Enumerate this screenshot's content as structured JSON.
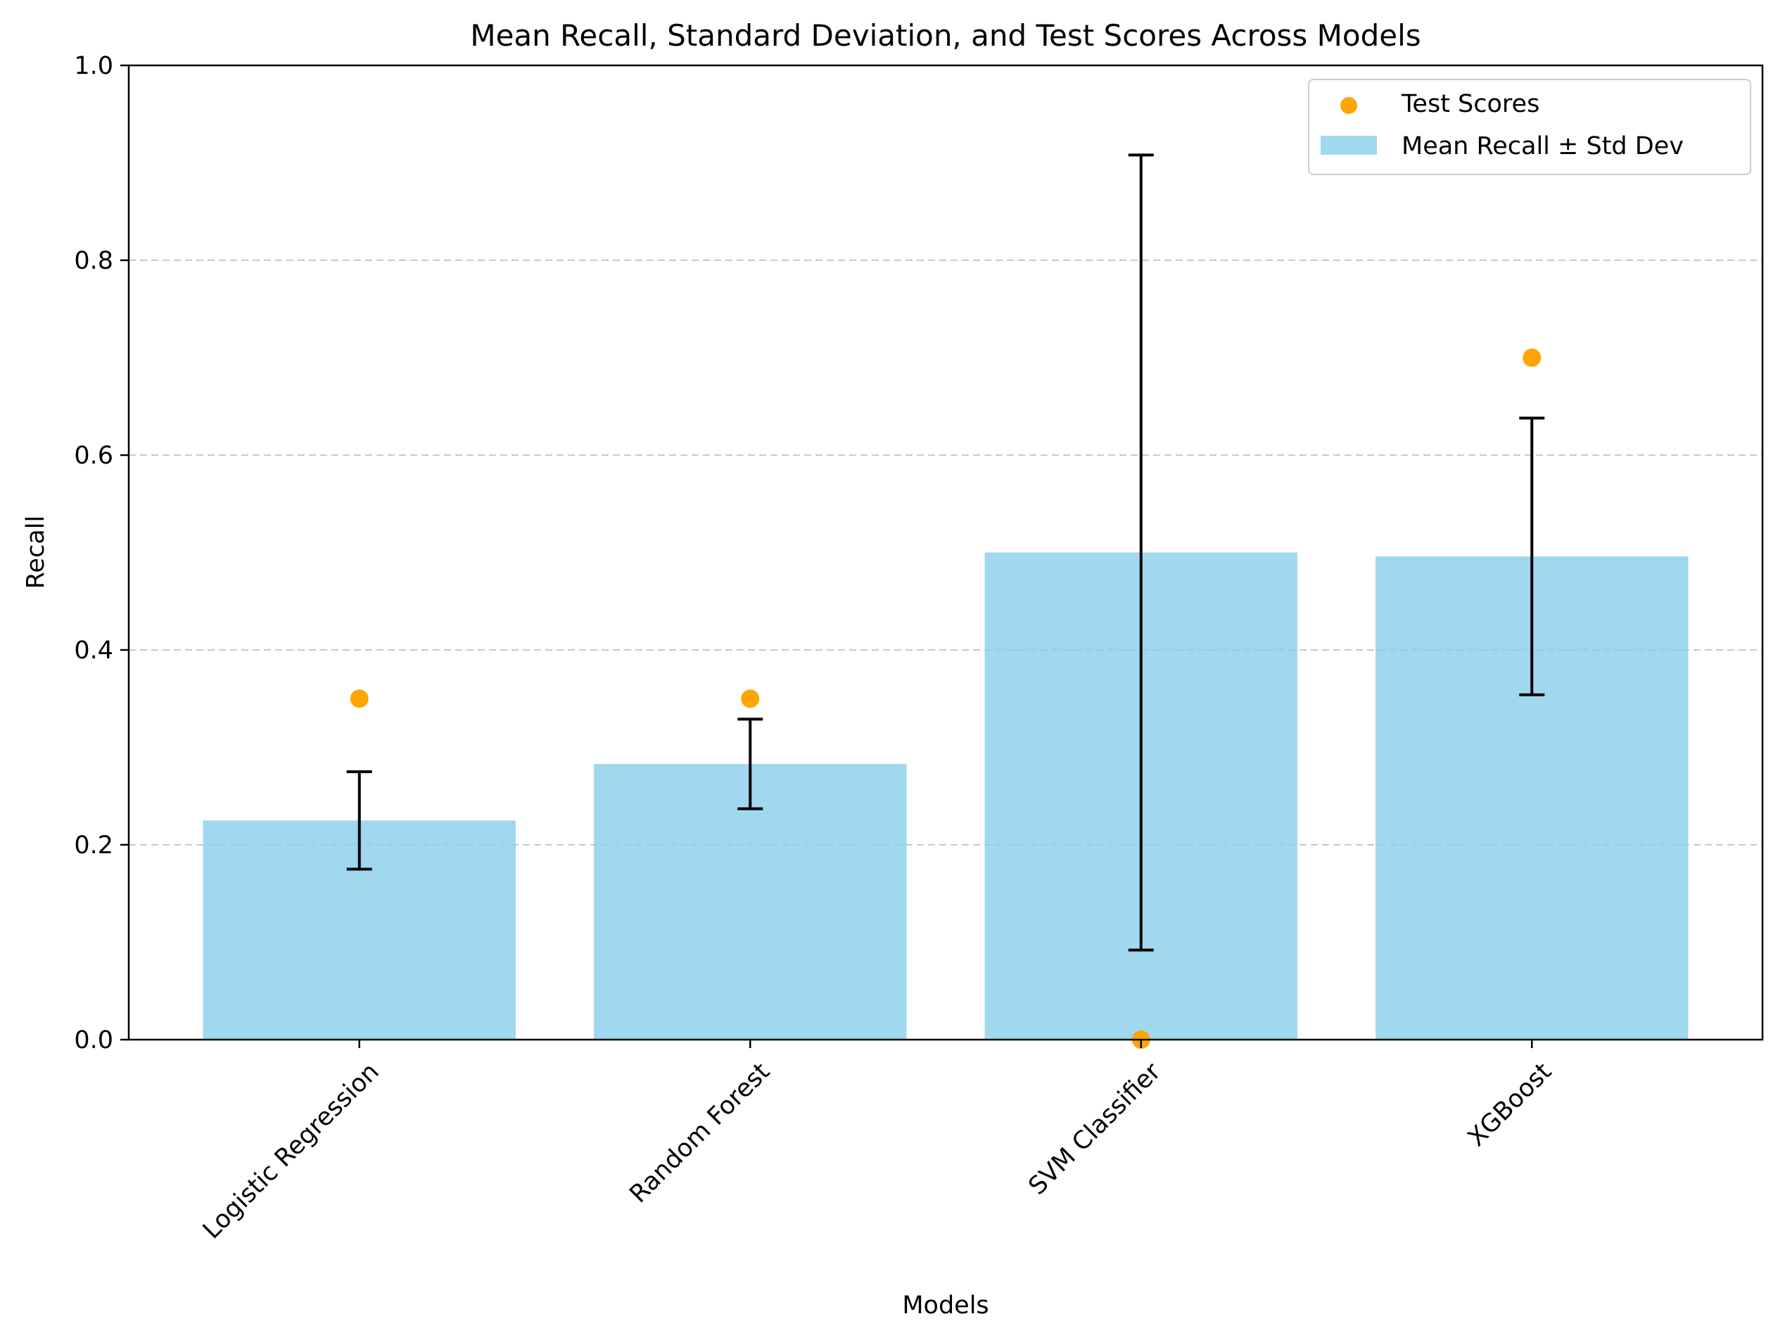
{
  "chart_data": {
    "type": "bar",
    "title": "Mean Recall, Standard Deviation, and Test Scores Across Models",
    "xlabel": "Models",
    "ylabel": "Recall",
    "ylim": [
      0,
      1.0
    ],
    "yticks": [
      "0.0",
      "0.2",
      "0.4",
      "0.6",
      "0.8",
      "1.0"
    ],
    "grid": "y dashed",
    "legend_position": "top-right",
    "categories": [
      "Logistic Regression",
      "Random Forest",
      "SVM Classifier",
      "XGBoost"
    ],
    "series": [
      {
        "name": "Mean Recall ± Std Dev",
        "kind": "bar",
        "color": "#87ceeb",
        "values": [
          0.225,
          0.283,
          0.5,
          0.496
        ],
        "std": [
          0.05,
          0.046,
          0.408,
          0.142
        ]
      },
      {
        "name": "Test Scores",
        "kind": "scatter",
        "color": "#ffa500",
        "values": [
          0.35,
          0.35,
          0.0,
          0.7
        ]
      }
    ]
  }
}
